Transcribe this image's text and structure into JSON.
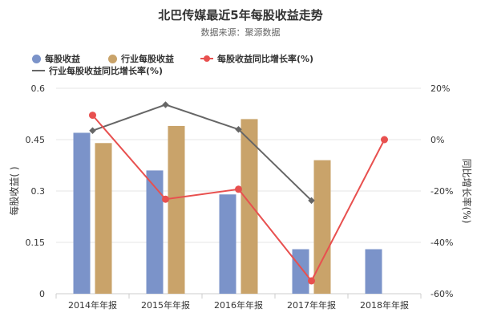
{
  "title": "北巴传媒最近5年每股收益走势",
  "subtitle": "数据来源：聚源数据",
  "colors": {
    "eps": "#7b93c9",
    "industry_eps": "#c9a36a",
    "eps_yoy": "#e8504f",
    "industry_yoy": "#666666"
  },
  "chart_data": {
    "type": "bar+line",
    "categories": [
      "2014年年报",
      "2015年年报",
      "2016年年报",
      "2017年年报",
      "2018年年报"
    ],
    "series": [
      {
        "name": "每股收益",
        "type": "bar",
        "axis": "left",
        "values": [
          0.47,
          0.36,
          0.29,
          0.13,
          0.13
        ]
      },
      {
        "name": "行业每股收益",
        "type": "bar",
        "axis": "left",
        "values": [
          0.44,
          0.49,
          0.51,
          0.39,
          null
        ]
      },
      {
        "name": "每股收益同比增长率(%)",
        "type": "line",
        "axis": "right",
        "values": [
          9.5,
          -23.2,
          -19.3,
          -55,
          0
        ]
      },
      {
        "name": "行业每股收益同比增长率(%)",
        "type": "line",
        "axis": "right",
        "values": [
          3.5,
          13.6,
          4,
          -23.7,
          null
        ]
      }
    ],
    "ylabel_left": "每股收益(  )",
    "ylabel_right": "同比增长率(%)",
    "ylim_left": [
      0,
      0.6
    ],
    "yticks_left": [
      "0",
      "0.15",
      "0.3",
      "0.45",
      "0.6"
    ],
    "ylim_right": [
      -60,
      20
    ],
    "yticks_right": [
      "-60%",
      "-40%",
      "-20%",
      "0%",
      "20%"
    ],
    "grid": true,
    "legend": "top-left"
  }
}
